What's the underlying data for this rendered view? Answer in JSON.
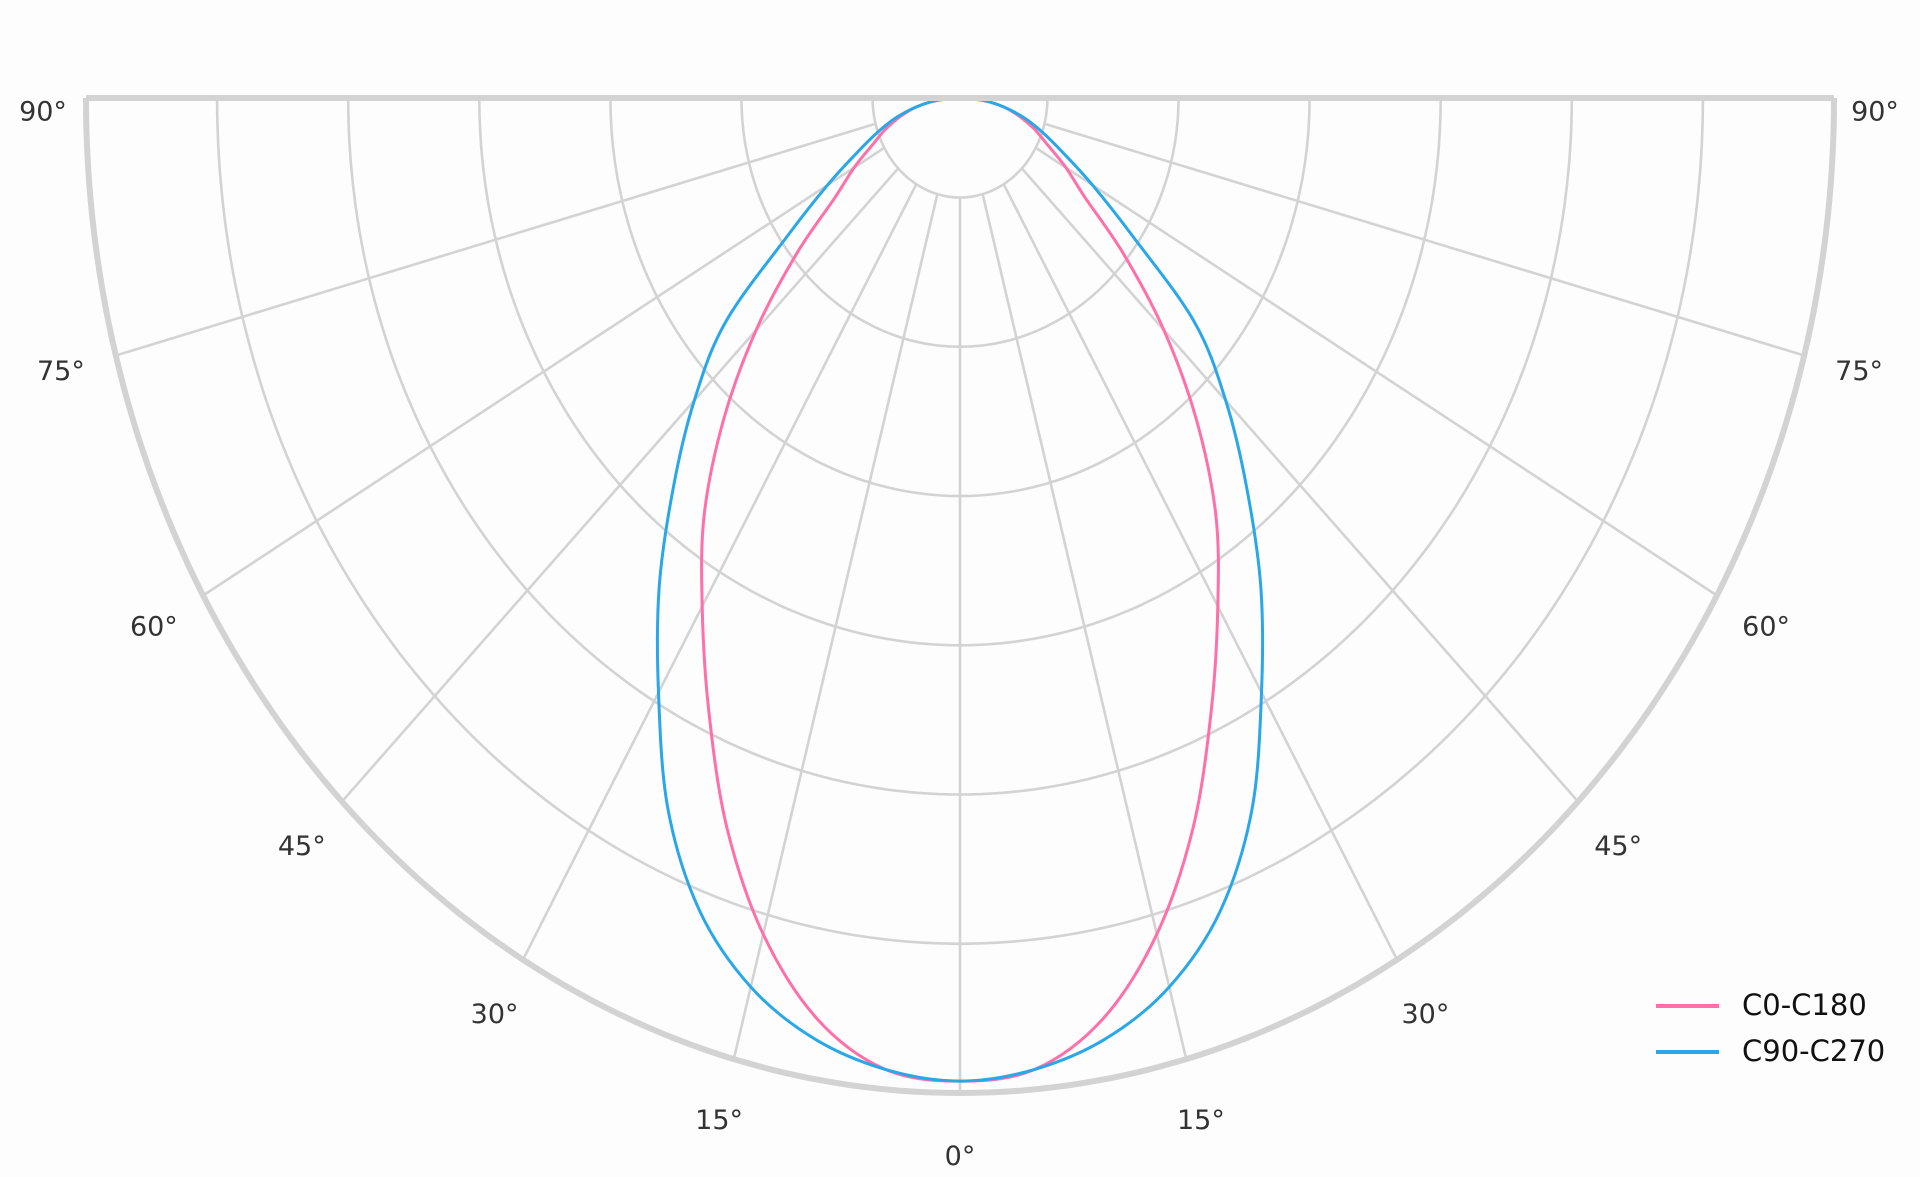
{
  "chart_data": {
    "type": "polar-line",
    "title": "",
    "angle_unit": "degrees",
    "angle_range": [
      -90,
      90
    ],
    "zero_direction": "down",
    "theta_tick_labels": [
      "90°",
      "75°",
      "60°",
      "45°",
      "30°",
      "15°",
      "0°",
      "15°",
      "30°",
      "45°",
      "60°",
      "75°",
      "90°"
    ],
    "theta_ticks": [
      -90,
      -75,
      -60,
      -45,
      -30,
      -15,
      0,
      15,
      30,
      45,
      60,
      75,
      90
    ],
    "radial_gridlines": [
      0.1,
      0.25,
      0.4,
      0.55,
      0.7,
      0.85,
      1.0
    ],
    "radial_range": [
      0,
      1
    ],
    "radial_tick_labels_shown": false,
    "grid": true,
    "legend_position": "bottom-right",
    "angles": [
      0,
      5,
      10,
      15,
      20,
      25,
      30,
      35,
      40,
      45,
      50,
      55,
      60,
      65,
      70,
      75,
      80,
      85,
      90
    ],
    "symmetric": true,
    "series": [
      {
        "name": "C0-C180",
        "color": "#ff6fa8",
        "values": [
          0.988,
          0.98,
          0.94,
          0.87,
          0.78,
          0.68,
          0.59,
          0.51,
          0.42,
          0.33,
          0.245,
          0.175,
          0.14,
          0.11,
          0.09,
          0.07,
          0.05,
          0.025,
          0
        ]
      },
      {
        "name": "C90-C270",
        "color": "#2aa7e8",
        "values": [
          0.988,
          0.98,
          0.96,
          0.925,
          0.87,
          0.79,
          0.69,
          0.6,
          0.51,
          0.43,
          0.35,
          0.24,
          0.175,
          0.13,
          0.1,
          0.075,
          0.05,
          0.025,
          0
        ]
      }
    ]
  }
}
